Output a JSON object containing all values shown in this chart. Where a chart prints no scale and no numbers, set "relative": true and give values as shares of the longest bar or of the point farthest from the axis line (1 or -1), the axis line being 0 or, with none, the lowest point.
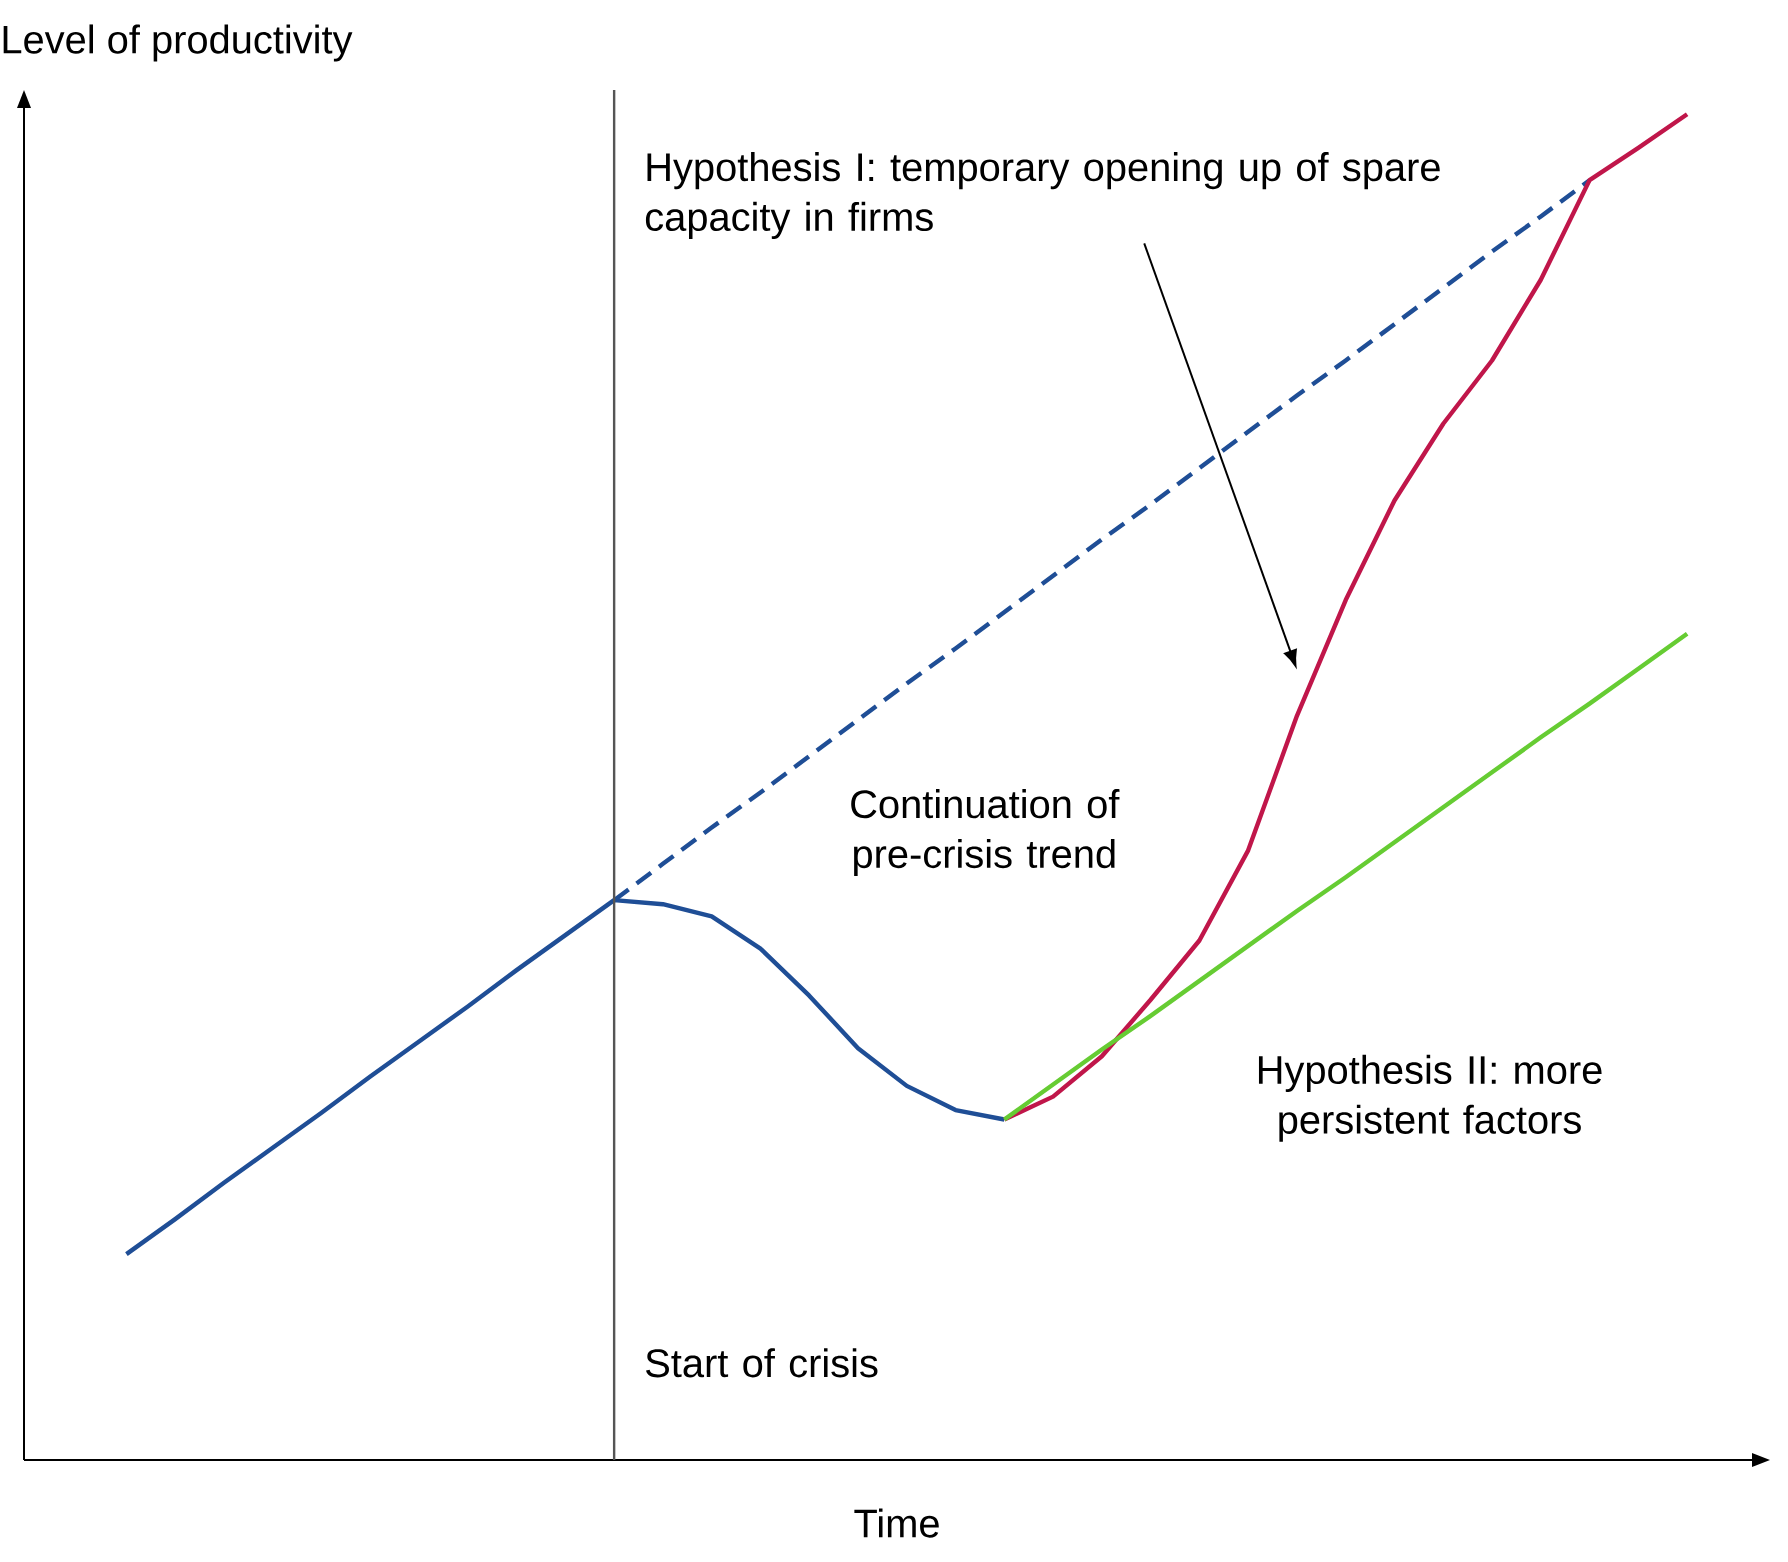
{
  "chart_data": {
    "type": "line",
    "relative": true,
    "xlabel": "Time",
    "ylabel": "Level of productivity",
    "categories": [
      null,
      null,
      null,
      null,
      null,
      null,
      null,
      null,
      null,
      null,
      null,
      null,
      null,
      null,
      null,
      null,
      null,
      null,
      null,
      null,
      null,
      null,
      null,
      null,
      null,
      null,
      null,
      null,
      null,
      null,
      null,
      null,
      null
    ],
    "series": [
      {
        "color": "#1f4e96",
        "line_style": "solid",
        "values": [
          0.153,
          0.179,
          0.206,
          0.232,
          0.258,
          0.285,
          0.311,
          0.337,
          0.364,
          0.39,
          0.416,
          0.413,
          0.404,
          0.38,
          0.345,
          0.306,
          0.278,
          0.26,
          0.253,
          null,
          null,
          null,
          null,
          null,
          null,
          null,
          null,
          null,
          null,
          null,
          null,
          null,
          null
        ]
      },
      {
        "color": "#1f4e96",
        "line_style": "dashed",
        "values": [
          null,
          null,
          null,
          null,
          null,
          null,
          null,
          null,
          null,
          null,
          0.416,
          0.443,
          0.47,
          0.496,
          0.523,
          0.55,
          0.577,
          0.603,
          0.63,
          0.657,
          0.684,
          0.71,
          0.737,
          0.764,
          0.791,
          0.817,
          0.844,
          0.871,
          0.898,
          0.924,
          0.951,
          null,
          null
        ]
      },
      {
        "color": "#c0164a",
        "line_style": "solid",
        "values": [
          null,
          null,
          null,
          null,
          null,
          null,
          null,
          null,
          null,
          null,
          null,
          null,
          null,
          null,
          null,
          null,
          null,
          null,
          0.253,
          0.27,
          0.3,
          0.342,
          0.386,
          0.453,
          0.553,
          0.639,
          0.713,
          0.77,
          0.817,
          0.877,
          0.951,
          0.975,
          1.0
        ]
      },
      {
        "color": "#66cc33",
        "line_style": "solid",
        "values": [
          null,
          null,
          null,
          null,
          null,
          null,
          null,
          null,
          null,
          null,
          null,
          null,
          null,
          null,
          null,
          null,
          null,
          null,
          0.253,
          0.279,
          0.305,
          0.33,
          0.356,
          0.382,
          0.408,
          0.433,
          0.459,
          0.485,
          0.511,
          0.537,
          0.562,
          0.588,
          0.614
        ]
      }
    ],
    "annotations": [
      "Hypothesis I:  temporary opening up of spare capacity in firms",
      "Continuation of pre-crisis trend",
      "Hypothesis II: more persistent factors",
      "Start of crisis"
    ]
  }
}
